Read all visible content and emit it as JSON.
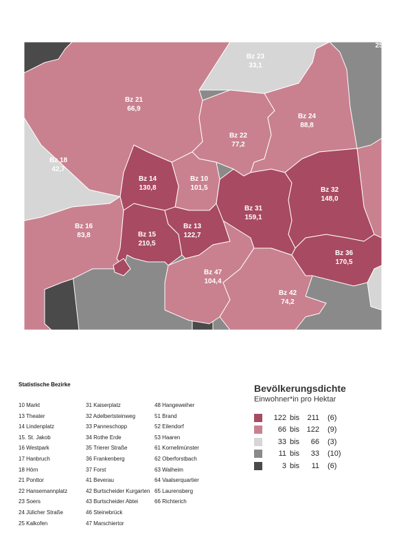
{
  "map": {
    "colors": {
      "c122_211": "#a84a62",
      "c66_122": "#c9818f",
      "c33_66": "#d6d6d6",
      "c11_33": "#8a8a8a",
      "c3_11": "#4a4a4a",
      "border": "#ffffff"
    },
    "districts": [
      {
        "code": "Bz 23",
        "value": "33,1"
      },
      {
        "code": "Bz 21",
        "value": "66,9"
      },
      {
        "code": "Bz 24",
        "value": "88,8"
      },
      {
        "code": "Bz 22",
        "value": "77,2"
      },
      {
        "code": "Bz 18",
        "value": "42,7"
      },
      {
        "code": "Bz 14",
        "value": "130,8"
      },
      {
        "code": "Bz 10",
        "value": "101,5"
      },
      {
        "code": "Bz 32",
        "value": "148,0"
      },
      {
        "code": "Bz 31",
        "value": "159,1"
      },
      {
        "code": "Bz 16",
        "value": "83,8"
      },
      {
        "code": "Bz 15",
        "value": "210,5"
      },
      {
        "code": "Bz 13",
        "value": "122,7"
      },
      {
        "code": "Bz 36",
        "value": "170,5"
      },
      {
        "code": "Bz 47",
        "value": "104,4"
      },
      {
        "code": "Bz 42",
        "value": "74,2"
      }
    ],
    "edge_label": "25"
  },
  "districts_legend": {
    "title": "Statistische Bezirke",
    "col1": [
      "10 Markt",
      "13 Theater",
      "14 Lindenplatz",
      "15. St. Jakob",
      "16 Westpark",
      "17 Hanbruch",
      "18 Hörn",
      "21 Ponttor",
      "22 Hansemannplatz",
      "23 Soers",
      "24 Jülicher Straße",
      "25 Kalkofen"
    ],
    "col2": [
      "31 Kaiserplatz",
      "32 Adelbertsteinweg",
      "33 Panneschopp",
      "34 Rothe Erde",
      "35 Trierer Straße",
      "36 Frankenberg",
      "37 Forst",
      "41 Beverau",
      "42 Burtscheider Kurgarten",
      "43 Burtscheider Abtei",
      "46 Steinebrück",
      "47 Marschiertor"
    ],
    "col3": [
      "48 Hangeweiher",
      "51 Brand",
      "52 Eilendorf",
      "53 Haaren",
      "61 Kornelimünster",
      "62 Oberforstbach",
      "63 Walheim",
      "64 Vaalserquartier",
      "65 Laurensberg",
      "66 Richterich"
    ]
  },
  "density_legend": {
    "title": "Bevölkerungsdichte",
    "subtitle": "Einwohner*in pro Hektar",
    "classes": [
      {
        "lo": "122",
        "hi": "211",
        "count": "(6)",
        "color": "#a84a62"
      },
      {
        "lo": "66",
        "hi": "122",
        "count": "(9)",
        "color": "#c9818f"
      },
      {
        "lo": "33",
        "hi": "66",
        "count": "(3)",
        "color": "#d6d6d6"
      },
      {
        "lo": "11",
        "hi": "33",
        "count": "(10)",
        "color": "#8a8a8a"
      },
      {
        "lo": "3",
        "hi": "11",
        "count": "(6)",
        "color": "#4a4a4a"
      }
    ],
    "bis_word": "bis"
  }
}
